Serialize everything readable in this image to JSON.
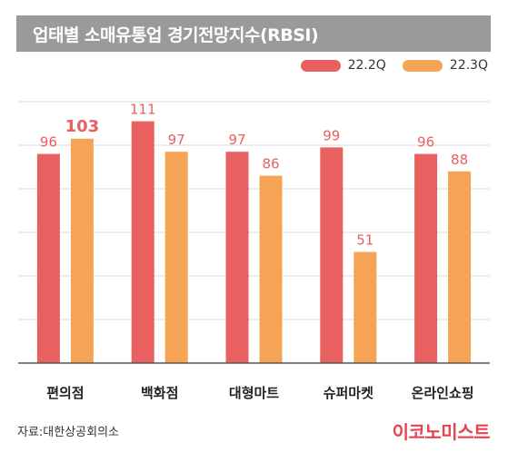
{
  "header": {
    "title": "업태별 소매유통업 경기전망지수(RBSI)"
  },
  "footer": {
    "source": "자료:대한상공회의소",
    "brand": "이코노미스트"
  },
  "colors": {
    "series1": "#e8605f",
    "series2": "#f5a456",
    "grid": "#d9d9d9",
    "axis": "#555555",
    "label": "#e8605f"
  },
  "chart_data": {
    "type": "bar",
    "categories": [
      "편의점",
      "백화점",
      "대형마트",
      "슈퍼마켓",
      "온라인쇼핑"
    ],
    "series": [
      {
        "name": "22.2Q",
        "values": [
          96,
          111,
          97,
          99,
          96
        ]
      },
      {
        "name": "22.3Q",
        "values": [
          103,
          97,
          86,
          51,
          88
        ]
      }
    ],
    "ylim": [
      0,
      120
    ],
    "grid": true,
    "legend": "top-right",
    "highlight": [
      {
        "series": 1,
        "index": 0
      }
    ]
  }
}
